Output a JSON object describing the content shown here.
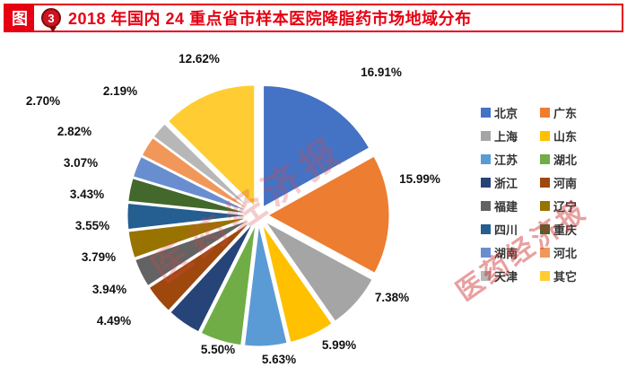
{
  "header": {
    "prefix": "图",
    "figure_number": "3",
    "title": "2018 年国内 24 重点省市样本医院降脂药市场地域分布"
  },
  "watermark": {
    "text": "医药经济报"
  },
  "chart_data": {
    "type": "pie",
    "title": "2018 年国内 24 重点省市样本医院降脂药市场地域分布",
    "categories": [
      "北京",
      "广东",
      "上海",
      "山东",
      "江苏",
      "湖北",
      "浙江",
      "河南",
      "福建",
      "辽宁",
      "四川",
      "重庆",
      "湖南",
      "河北",
      "天津",
      "其它"
    ],
    "values": [
      16.91,
      15.99,
      7.38,
      5.99,
      5.63,
      5.5,
      4.49,
      3.94,
      3.79,
      3.55,
      3.43,
      3.07,
      2.82,
      2.7,
      2.19,
      12.62
    ],
    "colors": [
      "#4472C4",
      "#ED7D31",
      "#A5A5A5",
      "#FFC000",
      "#5B9BD5",
      "#70AD47",
      "#264478",
      "#9E480E",
      "#636363",
      "#997300",
      "#255E91",
      "#43682B",
      "#698ED0",
      "#F1975A",
      "#B7B7B7",
      "#FFCD33"
    ],
    "label_format": "percent",
    "legend_position": "right",
    "exploded": true,
    "start_angle_deg": 0,
    "direction": "clockwise"
  }
}
